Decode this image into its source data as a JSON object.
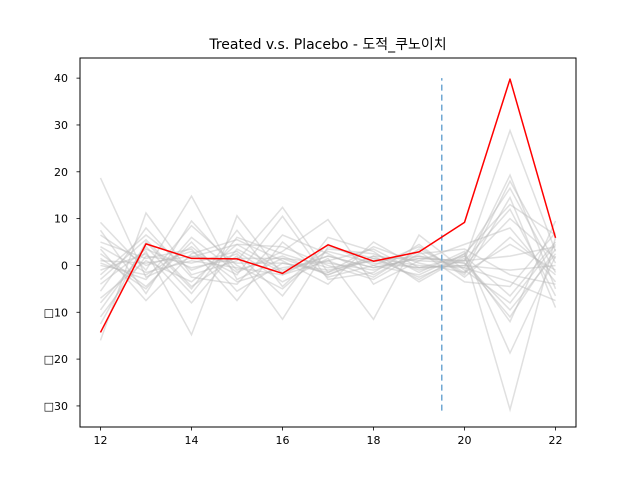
{
  "chart_data": {
    "type": "line",
    "title": "Treated v.s. Placebo - 도적_쿠노이치",
    "xlabel": "",
    "ylabel": "",
    "xlim": [
      11.55,
      22.45
    ],
    "ylim": [
      -34.5,
      44.3
    ],
    "x": [
      12,
      13,
      14,
      15,
      16,
      17,
      18,
      19,
      20,
      21,
      22
    ],
    "x_ticks": [
      12,
      14,
      16,
      18,
      20,
      22
    ],
    "x_tick_labels": [
      "12",
      "14",
      "16",
      "18",
      "20",
      "22"
    ],
    "y_ticks": [
      40,
      30,
      20,
      10,
      0,
      -10,
      -20,
      -30
    ],
    "y_tick_labels": [
      "40",
      "30",
      "20",
      "10",
      "0",
      "□10",
      "□20",
      "□30"
    ],
    "grid": false,
    "legend": "none",
    "treated": {
      "color": "#ff0000",
      "values": [
        -14.3,
        4.6,
        1.5,
        1.4,
        -1.7,
        4.4,
        0.9,
        2.9,
        9.2,
        39.8,
        5.9
      ]
    },
    "placebo": {
      "color": "#bbbbbb",
      "series": [
        [
          18.7,
          -2.5,
          1.8,
          4.5,
          -1.0,
          2.0,
          -0.5,
          1.5,
          1.0,
          28.8,
          3.0
        ],
        [
          -16.0,
          11.2,
          -2.0,
          1.0,
          12.4,
          -1.5,
          2.0,
          -3.0,
          2.5,
          -30.8,
          6.0
        ],
        [
          9.2,
          -1.0,
          14.8,
          -3.0,
          1.5,
          0.5,
          -1.0,
          2.0,
          -0.5,
          19.3,
          -5.0
        ],
        [
          -8.0,
          3.0,
          -14.8,
          10.6,
          -2.0,
          1.0,
          3.5,
          -1.5,
          3.0,
          -18.7,
          2.0
        ],
        [
          5.0,
          1.5,
          3.5,
          -7.5,
          5.0,
          -2.5,
          0.0,
          4.0,
          -2.0,
          14.5,
          -9.0
        ],
        [
          -3.0,
          5.5,
          -4.5,
          2.0,
          -11.5,
          4.0,
          1.5,
          -2.5,
          1.5,
          -12.0,
          9.5
        ],
        [
          1.5,
          -5.0,
          6.0,
          -1.5,
          3.0,
          9.8,
          -4.0,
          1.0,
          4.5,
          8.0,
          -3.5
        ],
        [
          -11.0,
          2.0,
          0.5,
          3.0,
          -3.5,
          1.5,
          -11.5,
          6.5,
          -1.0,
          -8.0,
          4.5
        ],
        [
          3.5,
          -7.5,
          2.5,
          5.5,
          1.0,
          -4.0,
          5.0,
          -0.5,
          2.0,
          16.5,
          -1.5
        ],
        [
          -5.5,
          8.0,
          -2.5,
          -4.0,
          6.5,
          2.5,
          -2.0,
          3.0,
          -3.5,
          -4.5,
          7.0
        ],
        [
          0.5,
          -3.0,
          8.5,
          0.0,
          -5.0,
          3.5,
          2.5,
          -1.0,
          1.0,
          12.0,
          -6.5
        ],
        [
          -9.5,
          4.0,
          -6.0,
          6.0,
          2.5,
          -0.5,
          1.0,
          2.0,
          0.5,
          -11.0,
          3.5
        ],
        [
          6.5,
          0.0,
          3.0,
          -2.0,
          10.5,
          -3.0,
          -1.5,
          4.5,
          -2.5,
          6.0,
          -2.0
        ],
        [
          -2.0,
          6.5,
          -1.0,
          2.5,
          -6.5,
          6.0,
          3.0,
          -3.5,
          2.0,
          -6.5,
          5.0
        ],
        [
          2.5,
          -4.5,
          5.0,
          -5.5,
          0.5,
          -1.5,
          4.0,
          0.5,
          -1.5,
          18.0,
          0.5
        ],
        [
          -7.0,
          1.0,
          -3.5,
          4.5,
          4.0,
          0.0,
          -3.0,
          2.5,
          3.5,
          -2.0,
          -4.0
        ],
        [
          4.0,
          -1.5,
          1.0,
          -0.5,
          -2.0,
          3.0,
          0.5,
          -0.5,
          0.0,
          10.0,
          1.5
        ],
        [
          -4.0,
          3.5,
          -0.5,
          1.5,
          1.5,
          -2.0,
          2.0,
          1.0,
          0.5,
          -9.5,
          2.5
        ],
        [
          0.0,
          -2.0,
          4.0,
          -3.5,
          -0.5,
          1.0,
          -2.5,
          3.5,
          -1.5,
          4.5,
          -1.0
        ],
        [
          -12.5,
          5.0,
          -5.0,
          7.5,
          -4.5,
          4.5,
          0.0,
          -2.0,
          2.5,
          13.0,
          6.5
        ],
        [
          7.5,
          -6.0,
          9.5,
          -1.0,
          2.0,
          -2.0,
          1.5,
          0.0,
          -0.5,
          -3.5,
          -7.5
        ],
        [
          -1.0,
          2.5,
          -8.0,
          3.5,
          -1.5,
          2.0,
          -0.5,
          1.5,
          1.0,
          2.0,
          4.0
        ],
        [
          1.0,
          0.5,
          2.0,
          0.5,
          0.5,
          -1.0,
          1.0,
          -0.5,
          0.0,
          -1.0,
          0.0
        ]
      ]
    },
    "intervention": {
      "x": 19.5,
      "y_range": [
        -31,
        40
      ],
      "color": "#6fa8d3",
      "style": "dashed"
    }
  }
}
